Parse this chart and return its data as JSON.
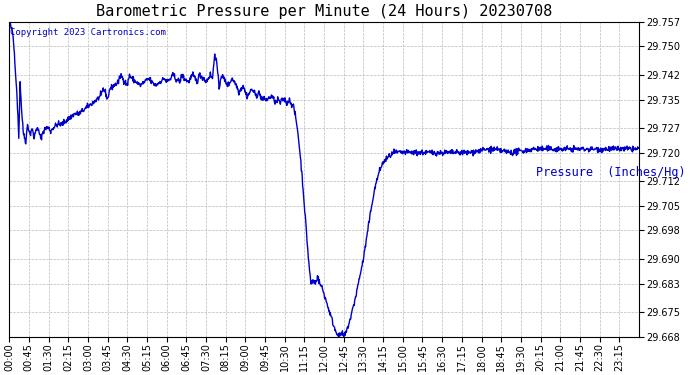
{
  "title": "Barometric Pressure per Minute (24 Hours) 20230708",
  "ylabel": "Pressure  (Inches/Hg)",
  "copyright_text": "Copyright 2023 Cartronics.com",
  "line_color": "#0000CC",
  "ylabel_color": "#0000CC",
  "copyright_color": "#0000CC",
  "background_color": "#ffffff",
  "grid_color": "#bbbbbb",
  "ylim_min": 29.668,
  "ylim_max": 29.757,
  "yticks": [
    29.668,
    29.675,
    29.683,
    29.69,
    29.698,
    29.705,
    29.712,
    29.72,
    29.727,
    29.735,
    29.742,
    29.75,
    29.757
  ],
  "xtick_labels": [
    "00:00",
    "00:45",
    "01:30",
    "02:15",
    "03:00",
    "03:45",
    "04:30",
    "05:15",
    "06:00",
    "06:45",
    "07:30",
    "08:15",
    "09:00",
    "09:45",
    "10:30",
    "11:15",
    "12:00",
    "12:45",
    "13:30",
    "14:15",
    "15:00",
    "15:45",
    "16:30",
    "17:15",
    "18:00",
    "18:45",
    "19:30",
    "20:15",
    "21:00",
    "21:45",
    "22:30",
    "23:15"
  ],
  "title_fontsize": 11,
  "tick_fontsize": 7,
  "ylabel_fontsize": 8.5,
  "copyright_fontsize": 6.5,
  "line_width": 1.0,
  "keypoints": [
    [
      0,
      29.757
    ],
    [
      8,
      29.754
    ],
    [
      12,
      29.748
    ],
    [
      18,
      29.736
    ],
    [
      22,
      29.724
    ],
    [
      25,
      29.74
    ],
    [
      28,
      29.733
    ],
    [
      32,
      29.726
    ],
    [
      38,
      29.723
    ],
    [
      42,
      29.728
    ],
    [
      48,
      29.725
    ],
    [
      52,
      29.727
    ],
    [
      57,
      29.724
    ],
    [
      62,
      29.727
    ],
    [
      68,
      29.726
    ],
    [
      72,
      29.724
    ],
    [
      78,
      29.726
    ],
    [
      85,
      29.727
    ],
    [
      90,
      29.727
    ],
    [
      95,
      29.726
    ],
    [
      100,
      29.727
    ],
    [
      110,
      29.728
    ],
    [
      120,
      29.728
    ],
    [
      130,
      29.729
    ],
    [
      140,
      29.73
    ],
    [
      150,
      29.731
    ],
    [
      160,
      29.731
    ],
    [
      170,
      29.732
    ],
    [
      180,
      29.733
    ],
    [
      190,
      29.734
    ],
    [
      200,
      29.735
    ],
    [
      210,
      29.736
    ],
    [
      215,
      29.738
    ],
    [
      220,
      29.737
    ],
    [
      225,
      29.735
    ],
    [
      230,
      29.738
    ],
    [
      240,
      29.739
    ],
    [
      250,
      29.74
    ],
    [
      255,
      29.742
    ],
    [
      260,
      29.741
    ],
    [
      270,
      29.739
    ],
    [
      275,
      29.742
    ],
    [
      280,
      29.741
    ],
    [
      290,
      29.74
    ],
    [
      300,
      29.739
    ],
    [
      310,
      29.74
    ],
    [
      320,
      29.741
    ],
    [
      325,
      29.74
    ],
    [
      335,
      29.739
    ],
    [
      345,
      29.74
    ],
    [
      355,
      29.741
    ],
    [
      360,
      29.74
    ],
    [
      370,
      29.741
    ],
    [
      375,
      29.742
    ],
    [
      380,
      29.741
    ],
    [
      390,
      29.74
    ],
    [
      395,
      29.742
    ],
    [
      400,
      29.741
    ],
    [
      410,
      29.74
    ],
    [
      415,
      29.741
    ],
    [
      420,
      29.742
    ],
    [
      425,
      29.741
    ],
    [
      430,
      29.74
    ],
    [
      435,
      29.742
    ],
    [
      445,
      29.741
    ],
    [
      450,
      29.74
    ],
    [
      455,
      29.741
    ],
    [
      460,
      29.742
    ],
    [
      465,
      29.741
    ],
    [
      470,
      29.748
    ],
    [
      475,
      29.745
    ],
    [
      480,
      29.738
    ],
    [
      485,
      29.742
    ],
    [
      490,
      29.741
    ],
    [
      495,
      29.74
    ],
    [
      500,
      29.739
    ],
    [
      505,
      29.74
    ],
    [
      510,
      29.741
    ],
    [
      515,
      29.74
    ],
    [
      520,
      29.739
    ],
    [
      525,
      29.737
    ],
    [
      530,
      29.738
    ],
    [
      535,
      29.739
    ],
    [
      540,
      29.737
    ],
    [
      545,
      29.736
    ],
    [
      550,
      29.737
    ],
    [
      555,
      29.738
    ],
    [
      560,
      29.737
    ],
    [
      565,
      29.736
    ],
    [
      570,
      29.737
    ],
    [
      575,
      29.736
    ],
    [
      580,
      29.735
    ],
    [
      590,
      29.735
    ],
    [
      600,
      29.736
    ],
    [
      605,
      29.735
    ],
    [
      610,
      29.734
    ],
    [
      615,
      29.735
    ],
    [
      620,
      29.734
    ],
    [
      625,
      29.735
    ],
    [
      630,
      29.735
    ],
    [
      635,
      29.734
    ],
    [
      640,
      29.735
    ],
    [
      645,
      29.734
    ],
    [
      650,
      29.733
    ],
    [
      655,
      29.73
    ],
    [
      660,
      29.726
    ],
    [
      665,
      29.72
    ],
    [
      670,
      29.713
    ],
    [
      675,
      29.705
    ],
    [
      680,
      29.697
    ],
    [
      685,
      29.689
    ],
    [
      690,
      29.683
    ],
    [
      695,
      29.684
    ],
    [
      700,
      29.683
    ],
    [
      705,
      29.685
    ],
    [
      710,
      29.683
    ],
    [
      715,
      29.682
    ],
    [
      720,
      29.68
    ],
    [
      725,
      29.678
    ],
    [
      730,
      29.676
    ],
    [
      735,
      29.674
    ],
    [
      740,
      29.672
    ],
    [
      745,
      29.67
    ],
    [
      750,
      29.669
    ],
    [
      755,
      29.668
    ],
    [
      760,
      29.669
    ],
    [
      765,
      29.668
    ],
    [
      770,
      29.669
    ],
    [
      775,
      29.671
    ],
    [
      780,
      29.673
    ],
    [
      790,
      29.678
    ],
    [
      800,
      29.684
    ],
    [
      810,
      29.69
    ],
    [
      820,
      29.698
    ],
    [
      830,
      29.706
    ],
    [
      840,
      29.712
    ],
    [
      850,
      29.716
    ],
    [
      860,
      29.718
    ],
    [
      870,
      29.719
    ],
    [
      880,
      29.72
    ],
    [
      890,
      29.72
    ],
    [
      900,
      29.72
    ],
    [
      950,
      29.72
    ],
    [
      1000,
      29.72
    ],
    [
      1050,
      29.72
    ],
    [
      1100,
      29.721
    ],
    [
      1150,
      29.72
    ],
    [
      1200,
      29.721
    ],
    [
      1250,
      29.721
    ],
    [
      1300,
      29.721
    ],
    [
      1350,
      29.721
    ],
    [
      1400,
      29.721
    ],
    [
      1439,
      29.721
    ]
  ]
}
